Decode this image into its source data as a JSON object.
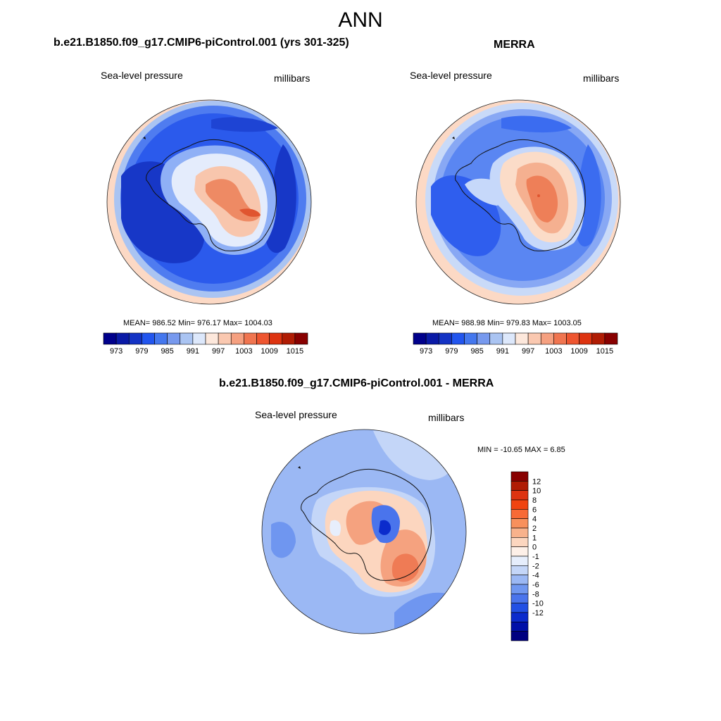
{
  "title": "ANN",
  "panels": [
    {
      "title": "b.e21.B1850.f09_g17.CMIP6-piControl.001 (yrs 301-325)",
      "left_label": "Sea-level pressure",
      "right_label": "millibars",
      "stats": "MEAN= 986.52  Min= 976.17  Max= 1004.03"
    },
    {
      "title": "MERRA",
      "left_label": "Sea-level pressure",
      "right_label": "millibars",
      "stats": "MEAN= 988.98  Min= 979.83  Max= 1003.05"
    },
    {
      "title": "b.e21.B1850.f09_g17.CMIP6-piControl.001 - MERRA",
      "left_label": "Sea-level pressure",
      "right_label": "millibars",
      "stats": "MIN = -10.65 MAX =   6.85"
    }
  ],
  "colorbar_abs": {
    "colors": [
      "#00008b",
      "#0a1aa6",
      "#1433c4",
      "#2255ee",
      "#4477ee",
      "#7799ee",
      "#aac4f2",
      "#dde8fb",
      "#fde8dc",
      "#fac8b0",
      "#f5a080",
      "#f07550",
      "#ee5530",
      "#dd3310",
      "#b01c04",
      "#880000"
    ],
    "tick_labels": [
      "973",
      "979",
      "985",
      "991",
      "997",
      "1003",
      "1009",
      "1015"
    ]
  },
  "colorbar_diff": {
    "colors": [
      "#880000",
      "#b01c04",
      "#dd3310",
      "#f04410",
      "#f86a36",
      "#f8905c",
      "#f8b28c",
      "#fcd6bf",
      "#fdf0e8",
      "#e6eefc",
      "#c4d6f8",
      "#9bb8f4",
      "#7097f0",
      "#4a74ec",
      "#2250e4",
      "#0b2bcc",
      "#0010a8",
      "#000080"
    ],
    "tick_labels": [
      "12",
      "10",
      "8",
      "6",
      "4",
      "2",
      "1",
      "0",
      "-1",
      "-2",
      "-4",
      "-6",
      "-8",
      "-10",
      "-12"
    ]
  },
  "map_colors": {
    "deep_blue": "#1e44d4",
    "blue": "#2f62ee",
    "mid_blue": "#5883f2",
    "light_blue": "#8fb0f6",
    "pale_blue": "#c6d8fa",
    "near_white": "#e7eefc",
    "peach": "#fde0cf",
    "salmon": "#f7b597",
    "orange_red": "#ef7b55",
    "red": "#e0542f",
    "dark_blue": "#0f20b0"
  }
}
